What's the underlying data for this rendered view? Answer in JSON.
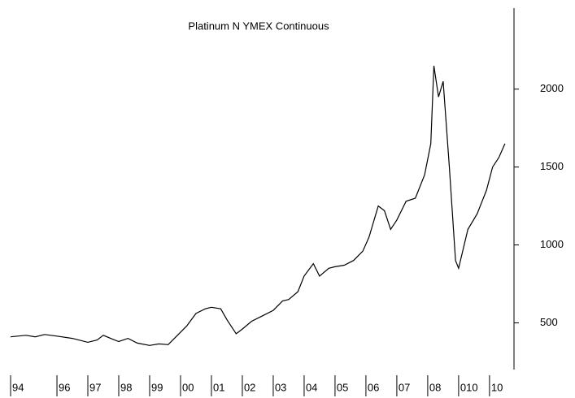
{
  "chart_data": {
    "type": "line",
    "title": "Platinum N YMEX Continuous",
    "x": [
      1994.5,
      1995.0,
      1995.3,
      1995.6,
      1996.0,
      1996.5,
      1997.0,
      1997.3,
      1997.5,
      1997.8,
      1998.0,
      1998.3,
      1998.6,
      1999.0,
      1999.3,
      1999.6,
      1999.9,
      2000.2,
      2000.5,
      2000.8,
      2001.0,
      2001.3,
      2001.5,
      2001.8,
      2002.0,
      2002.3,
      2002.6,
      2003.0,
      2003.3,
      2003.5,
      2003.8,
      2004.0,
      2004.3,
      2004.5,
      2004.8,
      2005.0,
      2005.3,
      2005.6,
      2005.9,
      2006.1,
      2006.4,
      2006.6,
      2006.8,
      2007.0,
      2007.3,
      2007.6,
      2007.9,
      2008.1,
      2008.2,
      2008.35,
      2008.5,
      2008.7,
      2008.9,
      2009.0,
      2009.3,
      2009.6,
      2009.9,
      2010.1,
      2010.3,
      2010.5
    ],
    "series": [
      {
        "name": "Platinum",
        "color": "#000000",
        "values": [
          410,
          420,
          410,
          425,
          415,
          400,
          375,
          390,
          420,
          395,
          380,
          400,
          370,
          355,
          365,
          360,
          420,
          480,
          560,
          590,
          600,
          590,
          520,
          430,
          460,
          510,
          540,
          580,
          640,
          650,
          700,
          800,
          880,
          800,
          850,
          860,
          870,
          900,
          960,
          1050,
          1250,
          1220,
          1100,
          1160,
          1280,
          1300,
          1450,
          1650,
          2150,
          1950,
          2050,
          1500,
          900,
          850,
          1100,
          1200,
          1350,
          1500,
          1560,
          1650
        ]
      }
    ],
    "xlim": [
      1994.42,
      2010.74
    ],
    "xticks": [
      {
        "value": 1994.5,
        "label": "94"
      },
      {
        "value": 1996,
        "label": "96"
      },
      {
        "value": 1997,
        "label": "97"
      },
      {
        "value": 1998,
        "label": "98"
      },
      {
        "value": 1999,
        "label": "99"
      },
      {
        "value": 2000,
        "label": "00"
      },
      {
        "value": 2001,
        "label": "01"
      },
      {
        "value": 2002,
        "label": "02"
      },
      {
        "value": 2003,
        "label": "03"
      },
      {
        "value": 2004,
        "label": "04"
      },
      {
        "value": 2005,
        "label": "05"
      },
      {
        "value": 2006,
        "label": "06"
      },
      {
        "value": 2007,
        "label": "07"
      },
      {
        "value": 2008,
        "label": "08"
      },
      {
        "value": 2009,
        "label": "010"
      },
      {
        "value": 2010,
        "label": "10"
      }
    ],
    "ylim": [
      200,
      2520
    ],
    "yticks": [
      500,
      1000,
      1500,
      2000
    ]
  }
}
